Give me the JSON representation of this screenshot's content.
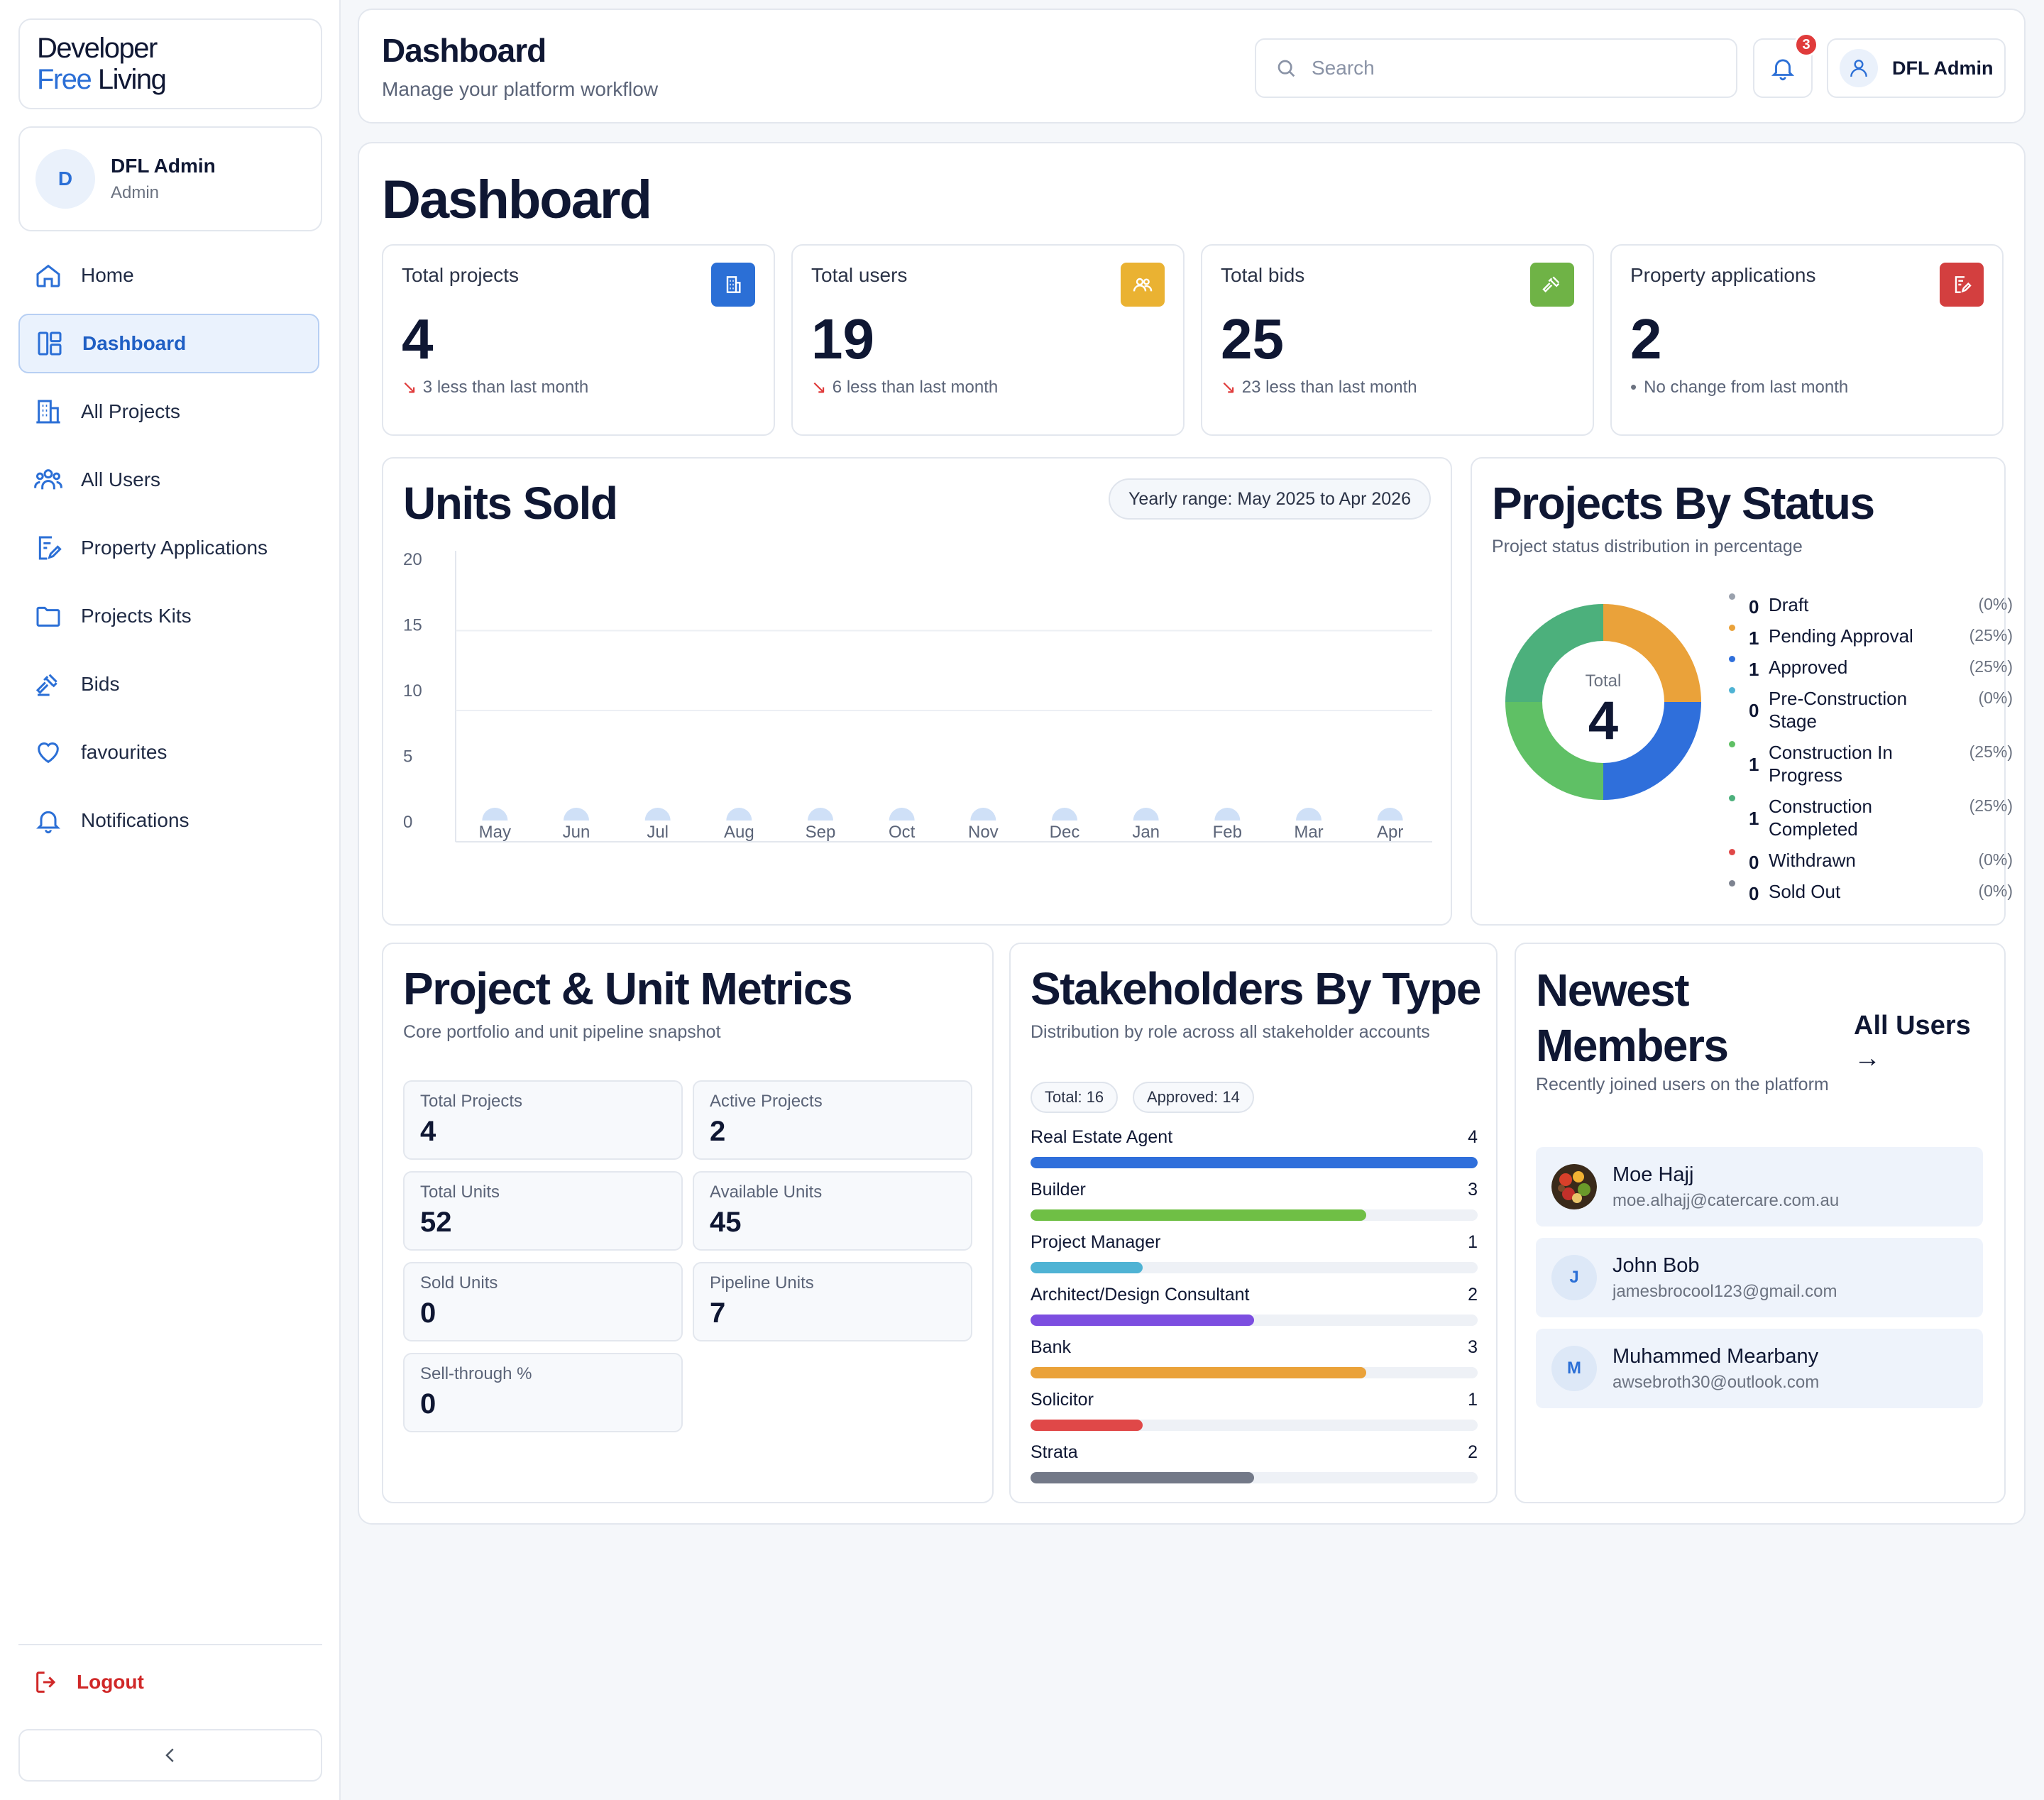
{
  "brand": {
    "line1": "Developer",
    "line2_accent": "Free",
    "line2_rest": " Living"
  },
  "sidebar_user": {
    "initial": "D",
    "name": "DFL Admin",
    "role": "Admin"
  },
  "nav": [
    {
      "label": "Home",
      "icon": "home-icon"
    },
    {
      "label": "Dashboard",
      "icon": "dashboard-icon",
      "active": true
    },
    {
      "label": "All Projects",
      "icon": "building-icon"
    },
    {
      "label": "All Users",
      "icon": "users-icon"
    },
    {
      "label": "Property Applications",
      "icon": "application-icon"
    },
    {
      "label": "Projects Kits",
      "icon": "folder-icon"
    },
    {
      "label": "Bids",
      "icon": "gavel-icon"
    },
    {
      "label": "favourites",
      "icon": "heart-icon"
    },
    {
      "label": "Notifications",
      "icon": "bell-icon"
    }
  ],
  "logout_label": "Logout",
  "header": {
    "title": "Dashboard",
    "subtitle": "Manage your platform workflow",
    "search_placeholder": "Search",
    "notification_count": "3",
    "admin_name": "DFL Admin"
  },
  "main": {
    "title": "Dashboard"
  },
  "stats": [
    {
      "label": "Total projects",
      "value": "4",
      "trend": "3 less than last month",
      "trend_dir": "down",
      "color": "#2b6fd6",
      "icon": "building-icon"
    },
    {
      "label": "Total users",
      "value": "19",
      "trend": "6 less than last month",
      "trend_dir": "down",
      "color": "#eab232",
      "icon": "users-icon"
    },
    {
      "label": "Total bids",
      "value": "25",
      "trend": "23 less than last month",
      "trend_dir": "down",
      "color": "#6fb346",
      "icon": "gavel-icon"
    },
    {
      "label": "Property applications",
      "value": "2",
      "trend": "No change from last month",
      "trend_dir": "flat",
      "color": "#d33f3f",
      "icon": "application-icon"
    }
  ],
  "units_sold": {
    "title": "Units Sold",
    "range": "Yearly range: May 2025 to Apr 2026"
  },
  "chart_data": {
    "type": "bar",
    "title": "Units Sold",
    "categories": [
      "May",
      "Jun",
      "Jul",
      "Aug",
      "Sep",
      "Oct",
      "Nov",
      "Dec",
      "Jan",
      "Feb",
      "Mar",
      "Apr"
    ],
    "values": [
      0,
      0,
      0,
      0,
      0,
      0,
      0,
      0,
      0,
      0,
      0,
      0
    ],
    "yticks": [
      0,
      5,
      10,
      15,
      20
    ],
    "ylim": [
      0,
      20
    ],
    "grid": true
  },
  "status": {
    "title": "Projects By Status",
    "subtitle": "Project status distribution in percentage",
    "total_label": "Total",
    "total_value": "4",
    "items": [
      {
        "count": "0",
        "name": "Draft",
        "pct": "(0%)",
        "value": 0,
        "color": "#9aa1ad"
      },
      {
        "count": "1",
        "name": "Pending Approval",
        "pct": "(25%)",
        "value": 25,
        "color": "#eaa23a"
      },
      {
        "count": "1",
        "name": "Approved",
        "pct": "(25%)",
        "value": 25,
        "color": "#2f6fdb"
      },
      {
        "count": "0",
        "name": "Pre-Construction Stage",
        "pct": "(0%)",
        "value": 0,
        "color": "#4fb3d4"
      },
      {
        "count": "1",
        "name": "Construction In Progress",
        "pct": "(25%)",
        "value": 25,
        "color": "#5fc065"
      },
      {
        "count": "1",
        "name": "Construction Completed",
        "pct": "(25%)",
        "value": 25,
        "color": "#4cb07c"
      },
      {
        "count": "0",
        "name": "Withdrawn",
        "pct": "(0%)",
        "value": 0,
        "color": "#e04848"
      },
      {
        "count": "0",
        "name": "Sold Out",
        "pct": "(0%)",
        "value": 0,
        "color": "#7d8390"
      }
    ]
  },
  "metrics": {
    "title": "Project & Unit Metrics",
    "subtitle": "Core portfolio and unit pipeline snapshot",
    "items": [
      {
        "label": "Total Projects",
        "value": "4"
      },
      {
        "label": "Active Projects",
        "value": "2"
      },
      {
        "label": "Total Units",
        "value": "52"
      },
      {
        "label": "Available Units",
        "value": "45"
      },
      {
        "label": "Sold Units",
        "value": "0"
      },
      {
        "label": "Pipeline Units",
        "value": "7"
      },
      {
        "label": "Sell-through %",
        "value": "0"
      }
    ]
  },
  "stakeholders": {
    "title": "Stakeholders By Type",
    "subtitle": "Distribution by role across all stakeholder accounts",
    "total_pill": "Total: 16",
    "approved_pill": "Approved: 14",
    "max": 4,
    "items": [
      {
        "name": "Real Estate Agent",
        "count": 4,
        "color": "#2f6fdb"
      },
      {
        "name": "Builder",
        "count": 3,
        "color": "#6fbf45"
      },
      {
        "name": "Project Manager",
        "count": 1,
        "color": "#4fb3d4"
      },
      {
        "name": "Architect/Design Consultant",
        "count": 2,
        "color": "#7c4ee0"
      },
      {
        "name": "Bank",
        "count": 3,
        "color": "#eaa23a"
      },
      {
        "name": "Solicitor",
        "count": 1,
        "color": "#e04848"
      },
      {
        "name": "Strata",
        "count": 2,
        "color": "#737988"
      }
    ]
  },
  "members": {
    "title_line1": "Newest",
    "title_line2": "Members",
    "subtitle": "Recently joined users on the platform",
    "all_users_label": "All Users",
    "arrow": "→",
    "items": [
      {
        "initial": "",
        "name": "Moe Hajj",
        "email": "moe.alhajj@catercare.com.au",
        "photo": true
      },
      {
        "initial": "J",
        "name": "John Bob",
        "email": "jamesbrocool123@gmail.com",
        "photo": false
      },
      {
        "initial": "M",
        "name": "Muhammed Mearbany",
        "email": "awsebroth30@outlook.com",
        "photo": false
      }
    ]
  }
}
